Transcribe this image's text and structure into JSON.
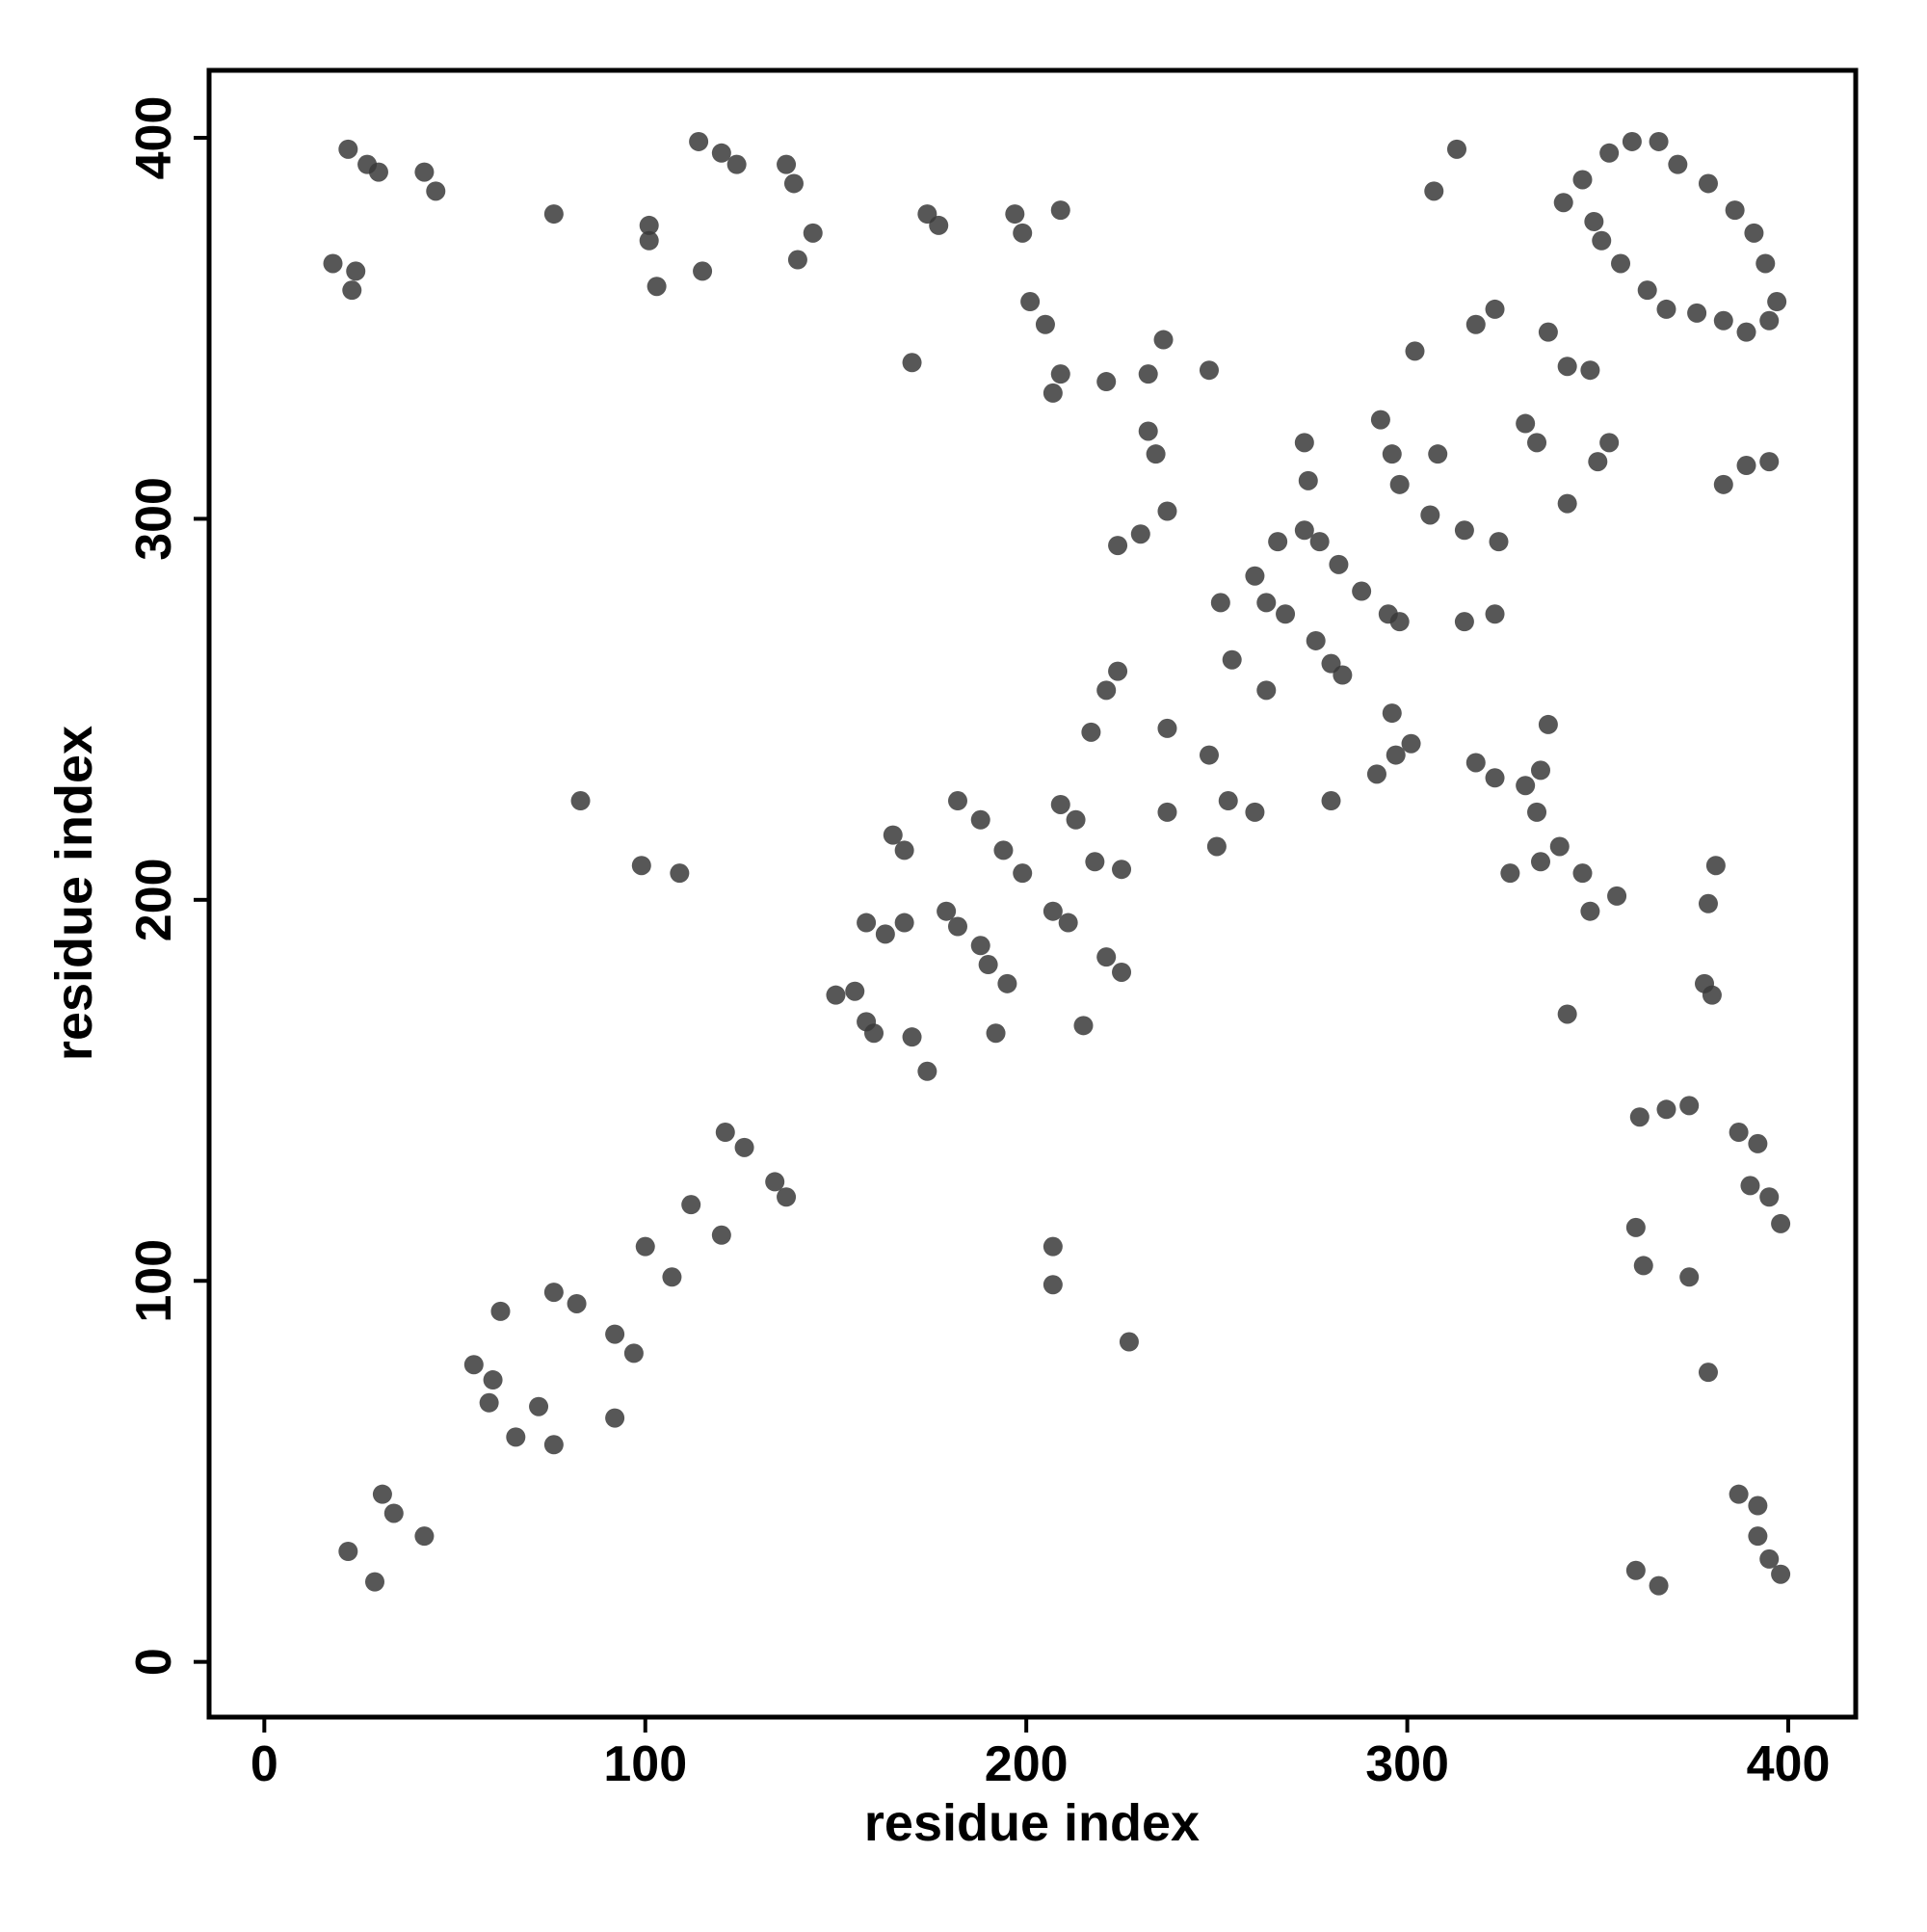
{
  "chart_data": {
    "type": "scatter",
    "xlabel": "residue index",
    "ylabel": "residue index",
    "color": "#3a3a3a",
    "xlim": [
      -14.5,
      417.7
    ],
    "ylim": [
      -14.5,
      417.7
    ],
    "xticks": [
      0,
      100,
      200,
      300,
      400
    ],
    "yticks": [
      0,
      100,
      200,
      300,
      400
    ],
    "x": [
      22,
      27,
      30,
      18,
      24,
      23,
      42,
      45,
      76,
      101,
      101,
      103,
      114,
      120,
      124,
      115,
      137,
      139,
      144,
      140,
      174,
      177,
      170,
      197,
      199,
      209,
      201,
      205,
      209,
      207,
      221,
      232,
      236,
      232,
      234,
      224,
      230,
      237,
      248,
      273,
      274,
      266,
      273,
      277,
      282,
      260,
      263,
      268,
      251,
      276,
      280,
      283,
      288,
      295,
      298,
      293,
      296,
      298,
      302,
      313,
      307,
      318,
      323,
      308,
      306,
      315,
      324,
      337,
      342,
      348,
      331,
      334,
      353,
      350,
      342,
      315,
      323,
      346,
      353,
      359,
      366,
      371,
      379,
      386,
      391,
      394,
      397,
      395,
      389,
      383,
      376,
      368,
      363,
      356,
      351,
      349,
      341,
      383,
      389,
      395,
      22,
      29,
      31,
      34,
      42,
      55,
      60,
      59,
      66,
      72,
      76,
      62,
      76,
      82,
      92,
      97,
      92,
      100,
      107,
      112,
      120,
      121,
      126,
      134,
      137,
      150,
      155,
      158,
      158,
      163,
      168,
      165,
      168,
      160,
      170,
      174,
      179,
      182,
      188,
      182,
      188,
      190,
      195,
      192,
      194,
      199,
      207,
      211,
      209,
      213,
      217,
      221,
      224,
      218,
      225,
      221,
      225,
      215,
      237,
      248,
      253,
      237,
      250,
      260,
      254,
      263,
      292,
      297,
      301,
      296,
      280,
      318,
      323,
      331,
      335,
      337,
      334,
      327,
      335,
      340,
      346,
      348,
      355,
      342,
      361,
      368,
      374,
      379,
      381,
      378,
      380,
      387,
      392,
      390,
      395,
      398,
      360,
      362,
      374,
      379,
      387,
      392,
      392,
      395,
      398,
      360,
      366,
      83,
      99,
      109,
      207,
      207,
      227
    ],
    "values": [
      397,
      393,
      391,
      367,
      365,
      360,
      391,
      386,
      380,
      377,
      373,
      361,
      399,
      396,
      393,
      365,
      393,
      388,
      375,
      368,
      380,
      377,
      341,
      380,
      375,
      381,
      357,
      351,
      338,
      333,
      336,
      338,
      347,
      323,
      317,
      293,
      296,
      302,
      339,
      320,
      310,
      294,
      297,
      294,
      288,
      285,
      278,
      275,
      278,
      268,
      262,
      259,
      281,
      275,
      273,
      326,
      317,
      309,
      344,
      397,
      386,
      351,
      355,
      317,
      301,
      297,
      294,
      349,
      340,
      339,
      325,
      320,
      320,
      315,
      304,
      273,
      275,
      389,
      396,
      399,
      399,
      393,
      388,
      381,
      375,
      367,
      357,
      352,
      349,
      352,
      354,
      355,
      360,
      367,
      373,
      378,
      383,
      309,
      314,
      315,
      29,
      21,
      44,
      39,
      33,
      78,
      74,
      68,
      59,
      67,
      57,
      92,
      97,
      94,
      86,
      81,
      64,
      109,
      101,
      120,
      112,
      139,
      135,
      126,
      122,
      175,
      176,
      168,
      194,
      191,
      194,
      217,
      213,
      165,
      164,
      155,
      197,
      193,
      188,
      226,
      221,
      183,
      178,
      165,
      213,
      207,
      197,
      194,
      225,
      221,
      244,
      255,
      260,
      210,
      208,
      185,
      181,
      167,
      245,
      238,
      226,
      223,
      214,
      223,
      263,
      255,
      233,
      238,
      241,
      249,
      226,
      236,
      232,
      230,
      234,
      246,
      223,
      207,
      210,
      214,
      207,
      197,
      201,
      170,
      143,
      145,
      146,
      199,
      209,
      178,
      175,
      139,
      136,
      125,
      122,
      115,
      114,
      104,
      101,
      76,
      44,
      41,
      33,
      27,
      23,
      24,
      20,
      226,
      209,
      207,
      99,
      109,
      84
    ]
  }
}
